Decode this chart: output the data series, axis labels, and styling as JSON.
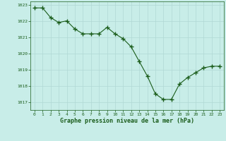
{
  "x": [
    0,
    1,
    2,
    3,
    4,
    5,
    6,
    7,
    8,
    9,
    10,
    11,
    12,
    13,
    14,
    15,
    16,
    17,
    18,
    19,
    20,
    21,
    22,
    23
  ],
  "y": [
    1022.8,
    1022.8,
    1022.2,
    1021.9,
    1022.0,
    1021.5,
    1021.2,
    1021.2,
    1021.2,
    1021.6,
    1021.2,
    1020.9,
    1020.4,
    1019.5,
    1018.6,
    1017.5,
    1017.15,
    1017.15,
    1018.1,
    1018.5,
    1018.8,
    1019.1,
    1019.2,
    1019.2
  ],
  "line_color": "#1a5c1a",
  "marker_color": "#1a5c1a",
  "bg_color": "#c8ede8",
  "grid_color": "#b0d8d4",
  "xlabel": "Graphe pression niveau de la mer (hPa)",
  "xlabel_color": "#1a5c1a",
  "tick_color": "#1a5c1a",
  "ylim": [
    1016.5,
    1023.2
  ],
  "yticks": [
    1017,
    1018,
    1019,
    1020,
    1021,
    1022,
    1023
  ],
  "xlim": [
    -0.5,
    23.5
  ],
  "xticks": [
    0,
    1,
    2,
    3,
    4,
    5,
    6,
    7,
    8,
    9,
    10,
    11,
    12,
    13,
    14,
    15,
    16,
    17,
    18,
    19,
    20,
    21,
    22,
    23
  ]
}
